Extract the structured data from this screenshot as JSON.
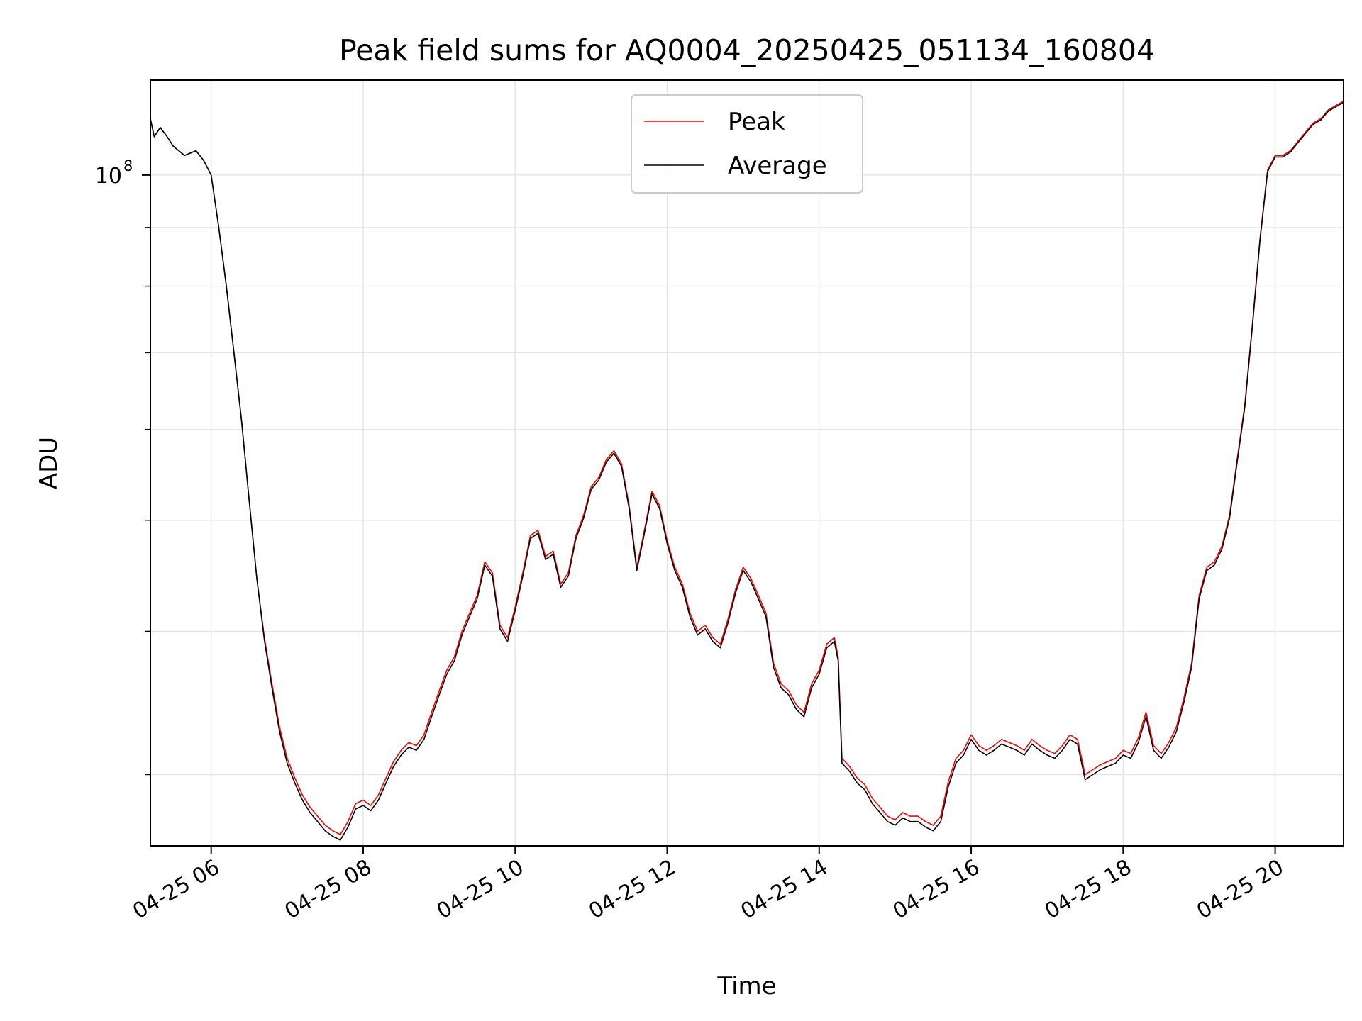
{
  "chart_data": {
    "type": "line",
    "title": "Peak field sums for AQ0004_20250425_051134_160804",
    "xlabel": "Time",
    "ylabel": "ADU",
    "x_unit": "hour of day, 2025-04-25",
    "xlim": [
      5.2,
      20.9
    ],
    "y_scale": "log",
    "ylim": [
      26000000,
      121000000
    ],
    "grid": true,
    "legend_position": "top-center",
    "x_ticks": [
      {
        "value": 6,
        "label": "04-25 06"
      },
      {
        "value": 8,
        "label": "04-25 08"
      },
      {
        "value": 10,
        "label": "04-25 10"
      },
      {
        "value": 12,
        "label": "04-25 12"
      },
      {
        "value": 14,
        "label": "04-25 14"
      },
      {
        "value": 16,
        "label": "04-25 16"
      },
      {
        "value": 18,
        "label": "04-25 18"
      },
      {
        "value": 20,
        "label": "04-25 20"
      }
    ],
    "y_ticks": [
      {
        "value": 100000000,
        "label": "10",
        "exponent": "8"
      }
    ],
    "y_minor_ticks": [
      30000000,
      40000000,
      50000000,
      60000000,
      70000000,
      80000000,
      90000000
    ],
    "series": [
      {
        "name": "Peak",
        "color": "#ff0000",
        "x": [
          5.2,
          5.25,
          5.33,
          5.42,
          5.5,
          5.65,
          5.8,
          5.9,
          6.0,
          6.1,
          6.2,
          6.3,
          6.4,
          6.5,
          6.6,
          6.7,
          6.8,
          6.9,
          7.0,
          7.1,
          7.2,
          7.3,
          7.4,
          7.5,
          7.6,
          7.7,
          7.8,
          7.9,
          8.0,
          8.1,
          8.2,
          8.3,
          8.4,
          8.5,
          8.6,
          8.7,
          8.8,
          8.9,
          9.0,
          9.1,
          9.2,
          9.3,
          9.4,
          9.5,
          9.6,
          9.7,
          9.8,
          9.9,
          10.0,
          10.1,
          10.2,
          10.3,
          10.4,
          10.5,
          10.6,
          10.7,
          10.8,
          10.9,
          11.0,
          11.1,
          11.2,
          11.3,
          11.4,
          11.5,
          11.6,
          11.7,
          11.8,
          11.9,
          12.0,
          12.1,
          12.2,
          12.3,
          12.4,
          12.5,
          12.6,
          12.7,
          12.8,
          12.9,
          13.0,
          13.1,
          13.2,
          13.3,
          13.4,
          13.5,
          13.6,
          13.7,
          13.8,
          13.9,
          14.0,
          14.1,
          14.2,
          14.25,
          14.3,
          14.4,
          14.5,
          14.6,
          14.7,
          14.8,
          14.9,
          15.0,
          15.1,
          15.2,
          15.3,
          15.4,
          15.5,
          15.6,
          15.7,
          15.8,
          15.9,
          16.0,
          16.1,
          16.2,
          16.3,
          16.4,
          16.5,
          16.6,
          16.7,
          16.8,
          16.9,
          17.0,
          17.1,
          17.2,
          17.3,
          17.4,
          17.5,
          17.6,
          17.7,
          17.8,
          17.9,
          18.0,
          18.1,
          18.2,
          18.3,
          18.4,
          18.5,
          18.6,
          18.7,
          18.8,
          18.9,
          19.0,
          19.1,
          19.2,
          19.3,
          19.4,
          19.5,
          19.6,
          19.7,
          19.8,
          19.9,
          20.0,
          20.1,
          20.2,
          20.3,
          20.4,
          20.5,
          20.6,
          20.7,
          20.8,
          20.9
        ],
        "y": [
          112000000,
          108000000,
          110000000,
          108000000,
          106000000,
          104000000,
          105000000,
          103000000,
          100000000,
          90000000,
          80000000,
          70000000,
          61000000,
          52000000,
          44500000,
          39500000,
          36000000,
          33000000,
          31000000,
          29800000,
          28800000,
          28100000,
          27600000,
          27100000,
          26800000,
          26600000,
          27300000,
          28300000,
          28500000,
          28200000,
          28800000,
          29800000,
          30800000,
          31500000,
          32000000,
          31800000,
          32500000,
          34000000,
          35500000,
          37000000,
          38000000,
          40000000,
          41500000,
          43000000,
          46000000,
          45000000,
          40500000,
          39500000,
          42000000,
          45000000,
          48500000,
          49000000,
          46500000,
          47000000,
          44000000,
          45000000,
          48500000,
          50500000,
          53500000,
          54500000,
          56500000,
          57500000,
          56000000,
          51500000,
          45500000,
          49000000,
          53000000,
          51500000,
          48000000,
          45500000,
          44000000,
          41500000,
          40000000,
          40500000,
          39500000,
          39000000,
          41000000,
          43500000,
          45500000,
          44500000,
          43000000,
          41500000,
          37500000,
          36000000,
          35500000,
          34500000,
          34000000,
          36000000,
          37000000,
          39000000,
          39500000,
          38000000,
          31000000,
          30500000,
          29800000,
          29400000,
          28600000,
          28100000,
          27600000,
          27400000,
          27800000,
          27600000,
          27600000,
          27300000,
          27100000,
          27600000,
          29600000,
          31000000,
          31500000,
          32500000,
          31800000,
          31500000,
          31800000,
          32200000,
          32000000,
          31800000,
          31500000,
          32200000,
          31800000,
          31500000,
          31300000,
          31800000,
          32500000,
          32200000,
          30000000,
          30300000,
          30600000,
          30800000,
          31000000,
          31500000,
          31300000,
          32300000,
          34000000,
          31800000,
          31300000,
          32000000,
          33000000,
          35000000,
          37500000,
          43000000,
          45500000,
          46000000,
          47500000,
          50500000,
          56500000,
          63000000,
          74000000,
          88000000,
          101000000,
          104000000,
          104000000,
          105000000,
          107000000,
          109000000,
          111000000,
          112000000,
          114000000,
          115000000,
          116000000
        ]
      },
      {
        "name": "Average",
        "color": "#000000",
        "x": [
          5.2,
          5.25,
          5.33,
          5.42,
          5.5,
          5.65,
          5.8,
          5.9,
          6.0,
          6.1,
          6.2,
          6.3,
          6.4,
          6.5,
          6.6,
          6.7,
          6.8,
          6.9,
          7.0,
          7.1,
          7.2,
          7.3,
          7.4,
          7.5,
          7.6,
          7.7,
          7.8,
          7.9,
          8.0,
          8.1,
          8.2,
          8.3,
          8.4,
          8.5,
          8.6,
          8.7,
          8.8,
          8.9,
          9.0,
          9.1,
          9.2,
          9.3,
          9.4,
          9.5,
          9.6,
          9.7,
          9.8,
          9.9,
          10.0,
          10.1,
          10.2,
          10.3,
          10.4,
          10.5,
          10.6,
          10.7,
          10.8,
          10.9,
          11.0,
          11.1,
          11.2,
          11.3,
          11.4,
          11.5,
          11.6,
          11.7,
          11.8,
          11.9,
          12.0,
          12.1,
          12.2,
          12.3,
          12.4,
          12.5,
          12.6,
          12.7,
          12.8,
          12.9,
          13.0,
          13.1,
          13.2,
          13.3,
          13.4,
          13.5,
          13.6,
          13.7,
          13.8,
          13.9,
          14.0,
          14.1,
          14.2,
          14.25,
          14.3,
          14.4,
          14.5,
          14.6,
          14.7,
          14.8,
          14.9,
          15.0,
          15.1,
          15.2,
          15.3,
          15.4,
          15.5,
          15.6,
          15.7,
          15.8,
          15.9,
          16.0,
          16.1,
          16.2,
          16.3,
          16.4,
          16.5,
          16.6,
          16.7,
          16.8,
          16.9,
          17.0,
          17.1,
          17.2,
          17.3,
          17.4,
          17.5,
          17.6,
          17.7,
          17.8,
          17.9,
          18.0,
          18.1,
          18.2,
          18.3,
          18.4,
          18.5,
          18.6,
          18.7,
          18.8,
          18.9,
          19.0,
          19.1,
          19.2,
          19.3,
          19.4,
          19.5,
          19.6,
          19.7,
          19.8,
          19.9,
          20.0,
          20.1,
          20.2,
          20.3,
          20.4,
          20.5,
          20.6,
          20.7,
          20.8,
          20.9
        ],
        "y": [
          112000000,
          108000000,
          110000000,
          108000000,
          106000000,
          104000000,
          105000000,
          103000000,
          100000000,
          90000000,
          80000000,
          70000000,
          61000000,
          52000000,
          44500000,
          39300000,
          35700000,
          32700000,
          30700000,
          29500000,
          28500000,
          27800000,
          27300000,
          26800000,
          26500000,
          26300000,
          27000000,
          28000000,
          28200000,
          27900000,
          28500000,
          29500000,
          30500000,
          31200000,
          31700000,
          31500000,
          32200000,
          33700000,
          35200000,
          36700000,
          37700000,
          39700000,
          41200000,
          42700000,
          45700000,
          44700000,
          40200000,
          39200000,
          41700000,
          44700000,
          48200000,
          48700000,
          46200000,
          46700000,
          43700000,
          44700000,
          48200000,
          50200000,
          53200000,
          54200000,
          56200000,
          57200000,
          55700000,
          51200000,
          45200000,
          48700000,
          52700000,
          51200000,
          47700000,
          45200000,
          43700000,
          41200000,
          39700000,
          40200000,
          39200000,
          38700000,
          40700000,
          43200000,
          45200000,
          44200000,
          42700000,
          41200000,
          37200000,
          35700000,
          35200000,
          34200000,
          33700000,
          35700000,
          36700000,
          38700000,
          39200000,
          37700000,
          30700000,
          30200000,
          29500000,
          29100000,
          28300000,
          27800000,
          27300000,
          27100000,
          27500000,
          27300000,
          27300000,
          27000000,
          26800000,
          27300000,
          29300000,
          30700000,
          31200000,
          32200000,
          31500000,
          31200000,
          31500000,
          31900000,
          31700000,
          31500000,
          31200000,
          31900000,
          31500000,
          31200000,
          31000000,
          31500000,
          32200000,
          31900000,
          29700000,
          30000000,
          30300000,
          30500000,
          30700000,
          31200000,
          31000000,
          32000000,
          33700000,
          31500000,
          31000000,
          31700000,
          32700000,
          34700000,
          37200000,
          42700000,
          45200000,
          45700000,
          47200000,
          50200000,
          56200000,
          62700000,
          73700000,
          87700000,
          100700000,
          103700000,
          103700000,
          104700000,
          106700000,
          108700000,
          110700000,
          111700000,
          113700000,
          114700000,
          115700000
        ]
      }
    ]
  }
}
